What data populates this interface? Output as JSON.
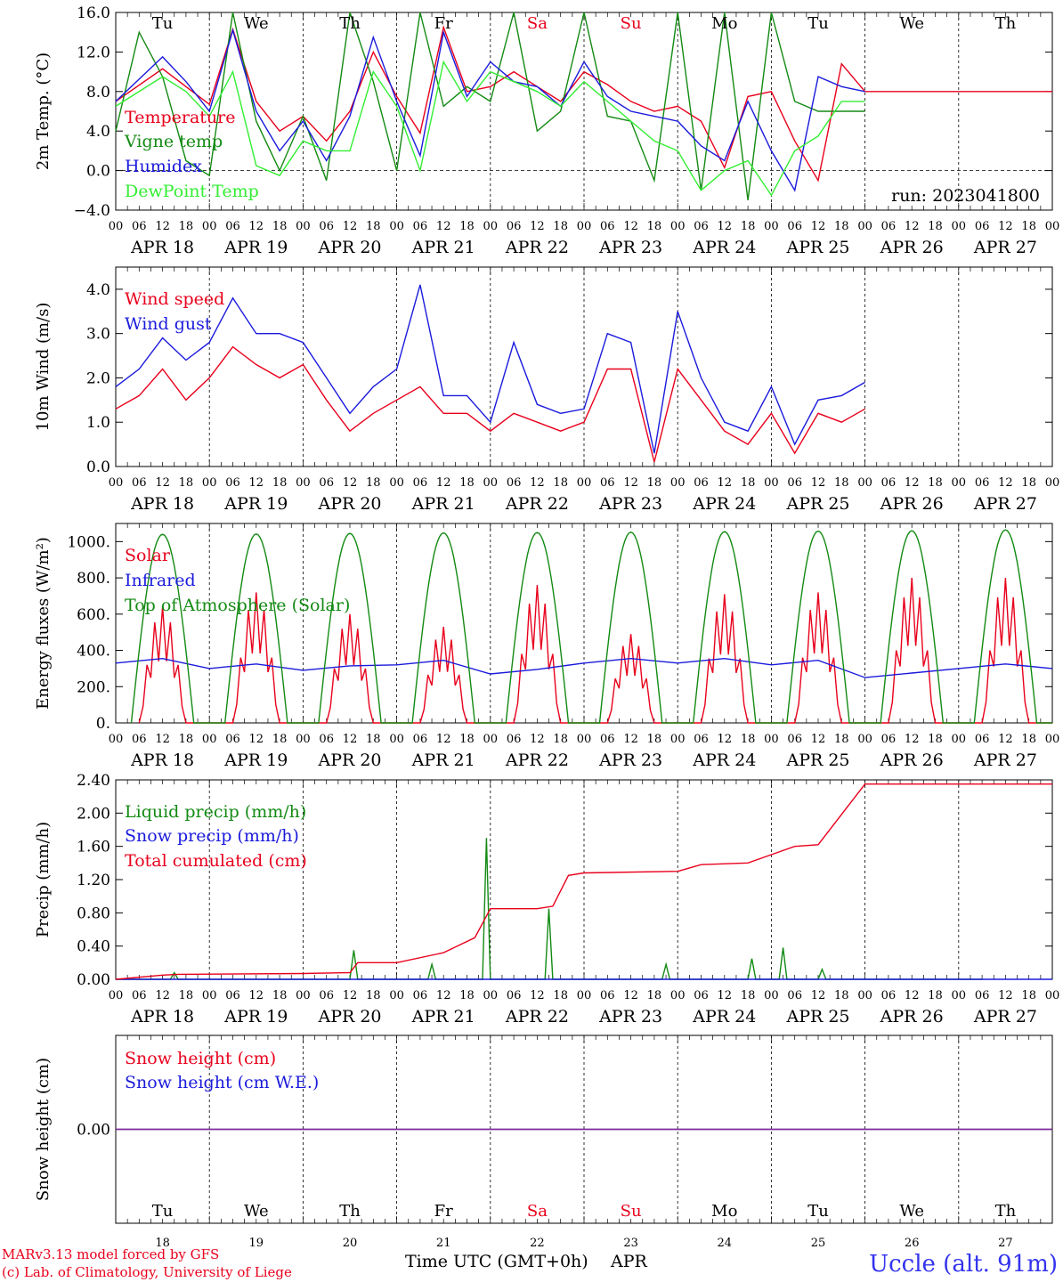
{
  "chart_data": [
    {
      "type": "line",
      "ylabel": "2m Temp. (°C)",
      "ylim": [
        -4,
        16
      ],
      "ytick_labels": [
        "16.0",
        "12.0",
        "8.0",
        "4.0",
        "0.0",
        "−4.0"
      ],
      "annotation": "run: 2023041800",
      "series": [
        {
          "name": "Temperature",
          "color": "#e8001c",
          "x": [
            0,
            12,
            18,
            24,
            30,
            36,
            42,
            48,
            54,
            60,
            66,
            72,
            78,
            84,
            90,
            96,
            102,
            108,
            114,
            120,
            126,
            132,
            138,
            144,
            150,
            156,
            162,
            168,
            174,
            180,
            186,
            192,
            198,
            204,
            210,
            216,
            222,
            228,
            234,
            240
          ],
          "values": [
            7.0,
            10.3,
            8.5,
            6.7,
            14.3,
            7.0,
            4.0,
            5.5,
            3.0,
            6.0,
            12.0,
            7.5,
            3.8,
            14.5,
            8.0,
            8.5,
            10.0,
            8.5,
            7.0,
            10.0,
            8.7,
            7.0,
            6.0,
            6.5,
            5.0,
            0.3,
            7.5,
            8.0,
            3.0,
            -1.0,
            10.8,
            8.0,
            8.0,
            8,
            8,
            8,
            8,
            8,
            8,
            8
          ]
        },
        {
          "name": "Vigne temp",
          "color": "#138a13",
          "x": [
            0,
            6,
            12,
            18,
            24,
            30,
            36,
            42,
            48,
            54,
            60,
            66,
            72,
            78,
            84,
            90,
            96,
            102,
            108,
            114,
            120,
            126,
            132,
            138,
            144,
            150,
            156,
            162,
            168,
            174,
            180,
            186,
            192
          ],
          "values": [
            4.0,
            14.0,
            9.5,
            1.0,
            -0.5,
            16.0,
            5.0,
            0.0,
            5.5,
            -1.0,
            16.0,
            9.0,
            0.0,
            16.0,
            6.5,
            8.5,
            7.0,
            16.0,
            4.0,
            6.0,
            16.0,
            5.5,
            5.0,
            -1.0,
            16.0,
            -2.0,
            16.0,
            -3.0,
            16.0,
            7.0,
            6.0,
            6,
            6
          ]
        },
        {
          "name": "Humidex",
          "color": "#1a1adc",
          "x": [
            0,
            12,
            18,
            24,
            30,
            36,
            42,
            48,
            54,
            60,
            66,
            72,
            78,
            84,
            90,
            96,
            102,
            108,
            114,
            120,
            126,
            132,
            138,
            144,
            150,
            156,
            162,
            168,
            174,
            180,
            186,
            192
          ],
          "values": [
            7.0,
            11.5,
            9.0,
            6.0,
            14.2,
            6.0,
            2.0,
            5.0,
            1.0,
            5.5,
            13.5,
            7.0,
            1.5,
            14.0,
            7.5,
            11.0,
            9.0,
            8.5,
            6.5,
            11.0,
            7.5,
            6.0,
            5.5,
            5.0,
            2.5,
            1.0,
            7.0,
            2.0,
            -2.0,
            9.5,
            8.5,
            8
          ]
        },
        {
          "name": "DewPoint Temp",
          "color": "#33ee33",
          "x": [
            0,
            12,
            18,
            24,
            30,
            36,
            42,
            48,
            54,
            60,
            66,
            72,
            78,
            84,
            90,
            96,
            102,
            108,
            114,
            120,
            126,
            132,
            138,
            144,
            150,
            156,
            162,
            168,
            174,
            180,
            186,
            192
          ],
          "values": [
            6.5,
            9.5,
            8.0,
            5.5,
            10.0,
            0.5,
            -0.5,
            3.0,
            2.0,
            2.0,
            10.0,
            6.5,
            0.0,
            11.0,
            7.0,
            10.0,
            9.0,
            8.0,
            6.5,
            9.0,
            7.0,
            5.0,
            3.0,
            2.0,
            -2.0,
            0.0,
            1.0,
            -2.5,
            2.0,
            3.5,
            7.0,
            7
          ]
        }
      ]
    },
    {
      "type": "line",
      "ylabel": "10m Wind (m/s)",
      "ylim": [
        0,
        4.5
      ],
      "ytick_labels": [
        "4.0",
        "3.0",
        "2.0",
        "1.0",
        "0.0"
      ],
      "series": [
        {
          "name": "Wind speed",
          "color": "#e8001c",
          "x": [
            0,
            6,
            12,
            18,
            24,
            30,
            36,
            42,
            48,
            54,
            60,
            66,
            72,
            78,
            84,
            90,
            96,
            102,
            108,
            114,
            120,
            126,
            132,
            138,
            144,
            150,
            156,
            162,
            168,
            174,
            180,
            186,
            192
          ],
          "values": [
            1.3,
            1.6,
            2.2,
            1.5,
            2.0,
            2.7,
            2.3,
            2.0,
            2.3,
            1.5,
            0.8,
            1.2,
            1.5,
            1.8,
            1.2,
            1.2,
            0.8,
            1.2,
            1.0,
            0.8,
            1.0,
            2.2,
            2.2,
            0.1,
            2.2,
            1.5,
            0.8,
            0.5,
            1.2,
            0.3,
            1.2,
            1.0,
            1.3
          ]
        },
        {
          "name": "Wind gust",
          "color": "#1a1adc",
          "x": [
            0,
            6,
            12,
            18,
            24,
            30,
            36,
            42,
            48,
            54,
            60,
            66,
            72,
            78,
            84,
            90,
            96,
            102,
            108,
            114,
            120,
            126,
            132,
            138,
            144,
            150,
            156,
            162,
            168,
            174,
            180,
            186,
            192
          ],
          "values": [
            1.8,
            2.2,
            2.9,
            2.4,
            2.8,
            3.8,
            3.0,
            3.0,
            2.8,
            2.0,
            1.2,
            1.8,
            2.2,
            4.1,
            1.6,
            1.6,
            1.0,
            2.8,
            1.4,
            1.2,
            1.3,
            3.0,
            2.8,
            0.3,
            3.5,
            2.0,
            1.0,
            0.8,
            1.8,
            0.5,
            1.5,
            1.6,
            1.9
          ]
        }
      ]
    },
    {
      "type": "line",
      "ylabel": "Energy fluxes (W/m²)",
      "ylim": [
        0,
        1100
      ],
      "ytick_labels": [
        "1000.",
        "800.",
        "600.",
        "400.",
        "200.",
        "0."
      ],
      "series": [
        {
          "name": "Solar",
          "color": "#e8001c",
          "daily_peak": [
            640,
            720,
            600,
            530,
            760,
            490,
            710,
            720,
            800,
            800
          ]
        },
        {
          "name": "Infrared",
          "color": "#1a1adc",
          "daily_level": [
            330,
            300,
            290,
            320,
            270,
            330,
            330,
            320,
            250,
            300
          ]
        },
        {
          "name": "Top of Atmosphere (Solar)",
          "color": "#138a13",
          "daily_peak": [
            1040,
            1042,
            1045,
            1048,
            1050,
            1052,
            1055,
            1058,
            1060,
            1065
          ]
        }
      ]
    },
    {
      "type": "line",
      "ylabel": "Precip (mm/h)",
      "ylim": [
        0,
        2.4
      ],
      "ytick_labels": [
        "2.40",
        "2.00",
        "1.60",
        "1.20",
        "0.80",
        "0.40",
        "0.00"
      ],
      "series": [
        {
          "name": "Liquid precip (mm/h)",
          "color": "#138a13",
          "x": [
            0,
            14,
            15,
            16,
            60,
            61,
            62,
            80,
            81,
            82,
            94,
            95,
            96,
            110,
            111,
            112,
            140,
            141,
            142,
            162,
            163,
            164,
            170,
            171,
            172,
            180,
            181,
            182,
            186,
            187,
            188,
            200,
            201,
            202,
            220,
            221,
            222
          ],
          "values": [
            0,
            0,
            0.08,
            0,
            0,
            0.35,
            0,
            0,
            0.18,
            0,
            0,
            1.7,
            0,
            0,
            0.85,
            0,
            0,
            0.18,
            0,
            0,
            0.25,
            0,
            0,
            0.38,
            0,
            0,
            0.12,
            0,
            0,
            0,
            0,
            0,
            0,
            0,
            0,
            0,
            0
          ]
        },
        {
          "name": "Snow precip (mm/h)",
          "color": "#1a1adc",
          "x": [
            0,
            240
          ],
          "values": [
            0,
            0
          ]
        },
        {
          "name": "Total cumulated (cm)",
          "color": "#e8001c",
          "x": [
            0,
            12,
            16,
            48,
            60,
            62,
            72,
            82,
            84,
            92,
            96,
            108,
            112,
            116,
            120,
            144,
            150,
            162,
            168,
            174,
            180,
            192,
            240
          ],
          "values": [
            0,
            0.05,
            0.06,
            0.07,
            0.08,
            0.2,
            0.2,
            0.3,
            0.32,
            0.5,
            0.85,
            0.85,
            0.88,
            1.25,
            1.28,
            1.3,
            1.38,
            1.4,
            1.5,
            1.6,
            1.62,
            2.35,
            2.35
          ]
        }
      ]
    },
    {
      "type": "line",
      "ylabel": "Snow height (cm)",
      "ytick_labels": [
        "0.00"
      ],
      "series": [
        {
          "name": "Snow height (cm)",
          "color": "#e8001c",
          "x": [
            0,
            240
          ],
          "values": [
            0,
            0
          ]
        },
        {
          "name": "Snow height (cm W.E.)",
          "color": "#1a1adc",
          "x": [
            0,
            240
          ],
          "values": [
            0,
            0
          ]
        }
      ]
    }
  ],
  "axes": {
    "hour_tick_labels": [
      "00",
      "06",
      "12",
      "18"
    ],
    "date_labels": [
      "APR 18",
      "APR 19",
      "APR 20",
      "APR 21",
      "APR 22",
      "APR 23",
      "APR 24",
      "APR 25",
      "APR 26",
      "APR 27"
    ],
    "weekday_labels": [
      "Tu",
      "We",
      "Th",
      "Fr",
      "Sa",
      "Su",
      "Mo",
      "Tu",
      "We",
      "Th"
    ],
    "weekday_colors": [
      "#000000",
      "#000000",
      "#000000",
      "#000000",
      "#e8001c",
      "#e8001c",
      "#000000",
      "#000000",
      "#000000",
      "#000000"
    ],
    "day_numbers": [
      "18",
      "19",
      "20",
      "21",
      "22",
      "23",
      "24",
      "25",
      "26",
      "27"
    ],
    "x_title": "Time UTC (GMT+0h)",
    "x_month": "APR"
  },
  "footer": {
    "model_line": "MARv3.13 model forced by GFS",
    "copyright_line": "(c) Lab. of Climatology, University of Liege",
    "station": "Uccle (alt. 91m)"
  },
  "colors": {
    "red": "#e8001c",
    "green": "#138a13",
    "blue": "#1a1adc",
    "light_green": "#33ee33",
    "purple": "#7a2a9a"
  }
}
